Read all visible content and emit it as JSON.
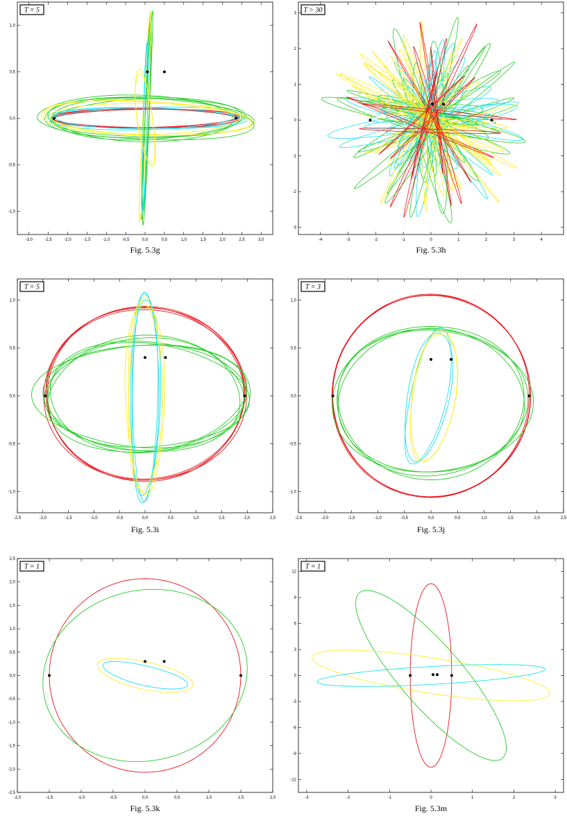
{
  "colors": {
    "red": "#e8141c",
    "green": "#22cc22",
    "cyan": "#18e0f0",
    "yellow": "#ffee22",
    "frame": "#000000"
  },
  "chart_data": [
    {
      "id": "g",
      "type": "line",
      "caption": "Fig. 5.3g",
      "tlabel": "T = 5",
      "xlim": [
        -3.3,
        3.3
      ],
      "ylim": [
        -1.25,
        1.25
      ],
      "xticks": [
        -3.0,
        -2.5,
        -2.0,
        -1.5,
        -1.0,
        -0.5,
        0.0,
        0.5,
        1.0,
        1.5,
        2.0,
        2.5,
        3.0
      ],
      "xtick_labels": [
        "-3,0",
        "-2,5",
        "-2,0",
        "-1,5",
        "-1,0",
        "-0,5",
        "0,0",
        "0,5",
        "1,0",
        "1,5",
        "2,0",
        "2,5",
        "3,0"
      ],
      "yticks": [
        -1.0,
        -0.5,
        0.0,
        0.5,
        1.0
      ],
      "ytick_labels": [
        "-1,0",
        "-0,5",
        "0,0",
        "0,5",
        "1,0"
      ],
      "series": [
        {
          "color": "red",
          "kind": "ellipse",
          "cx": 0,
          "cy": 0,
          "rx": 2.38,
          "ry": 0.1,
          "rot": 0,
          "loops": 4,
          "jitter": 0.03
        },
        {
          "color": "green",
          "kind": "ellipse",
          "cx": 0,
          "cy": 0,
          "rx": 2.55,
          "ry": 0.22,
          "rot": 0,
          "loops": 5,
          "jitter": 0.12
        },
        {
          "color": "cyan",
          "kind": "ellipse",
          "cx": 0,
          "cy": 0,
          "rx": 2.5,
          "ry": 0.12,
          "rot": 0,
          "loops": 3,
          "jitter": 0.05
        },
        {
          "color": "yellow",
          "kind": "ellipse",
          "cx": 0,
          "cy": 0,
          "rx": 2.62,
          "ry": 0.18,
          "rot": 0,
          "loops": 3,
          "jitter": 0.08
        },
        {
          "color": "green",
          "kind": "ellipse",
          "cx": 0.05,
          "cy": 0,
          "rx": 1.07,
          "ry": 0.05,
          "rot": 84,
          "loops": 3,
          "jitter": 0.08
        },
        {
          "color": "yellow",
          "kind": "ellipse",
          "cx": 0,
          "cy": 0,
          "rx": 1.08,
          "ry": 0.06,
          "rot": 83,
          "loops": 2,
          "jitter": 0.06
        },
        {
          "color": "cyan",
          "kind": "ellipse",
          "cx": 0,
          "cy": -0.1,
          "rx": 0.9,
          "ry": 0.05,
          "rot": 86,
          "loops": 2,
          "jitter": 0.05
        },
        {
          "color": "yellow",
          "kind": "ellipse",
          "cx": 0,
          "cy": 0,
          "rx": 0.55,
          "ry": 0.2,
          "rot": -70,
          "loops": 2,
          "jitter": 0.1
        }
      ],
      "markers": [
        [
          -2.35,
          0
        ],
        [
          2.35,
          0
        ],
        [
          0.06,
          0.5
        ],
        [
          0.5,
          0.5
        ]
      ]
    },
    {
      "id": "h",
      "type": "line",
      "caption": "Fig. 5.3h",
      "tlabel": "T > 30",
      "xlim": [
        -4.8,
        4.8
      ],
      "ylim": [
        -3.2,
        3.3
      ],
      "xticks": [
        -4,
        -3,
        -2,
        -1,
        0,
        1,
        2,
        3,
        4
      ],
      "xtick_labels": [
        "-4",
        "-3",
        "-2",
        "-1",
        "0",
        "1",
        "2",
        "3",
        "4"
      ],
      "yticks": [
        -3,
        -2,
        -1,
        0,
        1,
        2,
        3
      ],
      "ytick_labels": [
        "-3",
        "-2",
        "-1",
        "0",
        "1",
        "2",
        "3"
      ],
      "series": [
        {
          "color": "green",
          "kind": "star",
          "count": 22,
          "rmin": 1.6,
          "rmax": 3.9,
          "ry": 0.22,
          "seed": 3
        },
        {
          "color": "cyan",
          "kind": "star",
          "count": 20,
          "rmin": 1.5,
          "rmax": 3.6,
          "ry": 0.25,
          "seed": 7
        },
        {
          "color": "yellow",
          "kind": "star",
          "count": 22,
          "rmin": 1.6,
          "rmax": 3.8,
          "ry": 0.12,
          "seed": 11
        },
        {
          "color": "red",
          "kind": "star",
          "count": 12,
          "rmin": 1.6,
          "rmax": 3.8,
          "ry": 0.06,
          "seed": 19
        }
      ],
      "markers": [
        [
          -2.2,
          0
        ],
        [
          2.2,
          0
        ],
        [
          0.05,
          0.45
        ],
        [
          0.45,
          0.45
        ]
      ]
    },
    {
      "id": "i",
      "type": "line",
      "caption": "Fig. 5.3i",
      "tlabel": "T = 5",
      "xlim": [
        -2.5,
        2.5
      ],
      "ylim": [
        -1.22,
        1.22
      ],
      "xticks": [
        -2.5,
        -2.0,
        -1.5,
        -1.0,
        -0.5,
        0.0,
        0.5,
        1.0,
        1.5,
        2.0,
        2.5
      ],
      "xtick_labels": [
        "-2,5",
        "-2,0",
        "-1,5",
        "-1,0",
        "-0,5",
        "0,0",
        "0,5",
        "1,0",
        "1,5",
        "2,0",
        "2,5"
      ],
      "yticks": [
        -1.0,
        -0.5,
        0.0,
        0.5,
        1.0
      ],
      "ytick_labels": [
        "-1,0",
        "-0,5",
        "0,0",
        "0,5",
        "1,0"
      ],
      "series": [
        {
          "color": "red",
          "kind": "ellipse",
          "cx": 0,
          "cy": 0.02,
          "rx": 1.95,
          "ry": 0.9,
          "rot": 0,
          "loops": 4,
          "jitter": 0.02
        },
        {
          "color": "green",
          "kind": "ellipse",
          "cx": 0,
          "cy": 0,
          "rx": 2.1,
          "ry": 0.58,
          "rot": 0,
          "loops": 6,
          "jitter": 0.1
        },
        {
          "color": "cyan",
          "kind": "ellipse",
          "cx": 0,
          "cy": 0,
          "rx": 0.28,
          "ry": 0.98,
          "rot": 0,
          "loops": 3,
          "jitter": 0.12
        },
        {
          "color": "yellow",
          "kind": "ellipse",
          "cx": 0,
          "cy": 0,
          "rx": 0.35,
          "ry": 1.02,
          "rot": 0,
          "loops": 3,
          "jitter": 0.12
        }
      ],
      "markers": [
        [
          -1.95,
          0
        ],
        [
          1.95,
          0
        ],
        [
          0,
          0.4
        ],
        [
          0.4,
          0.4
        ]
      ]
    },
    {
      "id": "j",
      "type": "line",
      "caption": "Fig. 5.3j",
      "tlabel": "T = 3",
      "xlim": [
        -2.5,
        2.5
      ],
      "ylim": [
        -1.22,
        1.22
      ],
      "xticks": [
        -2.5,
        -2.0,
        -1.5,
        -1.0,
        -0.5,
        0.0,
        0.5,
        1.0,
        1.5,
        2.0,
        2.5
      ],
      "xtick_labels": [
        "-2,5",
        "-2,0",
        "-1,5",
        "-1,0",
        "-0,5",
        "0,0",
        "0,5",
        "1,0",
        "1,5",
        "2,0",
        "2,5"
      ],
      "yticks": [
        -1.0,
        -0.5,
        0.0,
        0.5,
        1.0
      ],
      "ytick_labels": [
        "-1,0",
        "-0,5",
        "0,0",
        "0,5",
        "1,0"
      ],
      "series": [
        {
          "color": "red",
          "kind": "ellipse",
          "cx": 0,
          "cy": 0,
          "rx": 1.86,
          "ry": 1.06,
          "rot": 0,
          "loops": 3,
          "jitter": 0.01
        },
        {
          "color": "green",
          "kind": "ellipse",
          "cx": 0,
          "cy": -0.06,
          "rx": 1.82,
          "ry": 0.77,
          "rot": 0,
          "loops": 4,
          "jitter": 0.05
        },
        {
          "color": "cyan",
          "kind": "ellipse",
          "cx": -0.05,
          "cy": 0,
          "rx": 0.35,
          "ry": 0.72,
          "rot": -25,
          "loops": 2,
          "jitter": 0.08
        },
        {
          "color": "yellow",
          "kind": "ellipse",
          "cx": 0.05,
          "cy": 0,
          "rx": 0.38,
          "ry": 0.74,
          "rot": -20,
          "loops": 2,
          "jitter": 0.08
        }
      ],
      "markers": [
        [
          -1.85,
          0
        ],
        [
          1.85,
          0
        ],
        [
          0,
          0.38
        ],
        [
          0.38,
          0.38
        ]
      ]
    },
    {
      "id": "k",
      "type": "line",
      "caption": "Fig. 5.3k",
      "tlabel": "T = 1",
      "xlim": [
        -2.0,
        2.0
      ],
      "ylim": [
        -2.5,
        2.5
      ],
      "xticks": [
        -2.0,
        -1.5,
        -1.0,
        -0.5,
        0.0,
        0.5,
        1.0,
        1.5,
        2.0
      ],
      "xtick_labels": [
        "-2,0",
        "-1,5",
        "-1,0",
        "-0,5",
        "0,0",
        "0,5",
        "1,0",
        "1,5",
        "2,0"
      ],
      "yticks": [
        -2.5,
        -2.0,
        -1.5,
        -1.0,
        -0.5,
        0.0,
        0.5,
        1.0,
        1.5,
        2.0,
        2.5
      ],
      "ytick_labels": [
        "-2,5",
        "-2,0",
        "-1,5",
        "-1,0",
        "-0,5",
        "0,0",
        "0,5",
        "1,0",
        "1,5",
        "2,0",
        "2,5"
      ],
      "series": [
        {
          "color": "red",
          "kind": "ellipse",
          "cx": 0,
          "cy": 0,
          "rx": 1.5,
          "ry": 2.07,
          "rot": 0,
          "loops": 1,
          "jitter": 0
        },
        {
          "color": "green",
          "kind": "ellipse",
          "cx": 0,
          "cy": 0,
          "rx": 1.58,
          "ry": 1.86,
          "rot": -15,
          "loops": 1,
          "jitter": 0
        },
        {
          "color": "yellow",
          "kind": "ellipse",
          "cx": 0,
          "cy": 0,
          "rx": 0.75,
          "ry": 0.3,
          "rot": -18,
          "loops": 1,
          "jitter": 0.05
        },
        {
          "color": "cyan",
          "kind": "ellipse",
          "cx": 0,
          "cy": 0,
          "rx": 0.68,
          "ry": 0.2,
          "rot": -18,
          "loops": 1,
          "jitter": 0.05
        }
      ],
      "markers": [
        [
          -1.5,
          0
        ],
        [
          1.5,
          0
        ],
        [
          0,
          0.3
        ],
        [
          0.3,
          0.3
        ]
      ]
    },
    {
      "id": "m",
      "type": "line",
      "caption": "Fig. 5.3m",
      "tlabel": "T = 1",
      "xlim": [
        -3.2,
        3.2
      ],
      "ylim": [
        -13.5,
        13.5
      ],
      "xticks": [
        -3,
        -2,
        -1,
        0,
        1,
        2,
        3
      ],
      "xtick_labels": [
        "-3",
        "-2",
        "-1",
        "0",
        "1",
        "2",
        "3"
      ],
      "yticks": [
        -12,
        -9,
        -6,
        -3,
        0,
        3,
        6,
        9,
        12
      ],
      "ytick_labels": [
        "-12",
        "-9",
        "-6",
        "-3",
        "0",
        "3",
        "6",
        "9",
        "12"
      ],
      "series": [
        {
          "color": "red",
          "kind": "ellipse",
          "cx": 0,
          "cy": 0,
          "rx": 0.5,
          "ry": 10.6,
          "rot": 0,
          "loops": 1,
          "jitter": 0
        },
        {
          "color": "green",
          "kind": "line_ellipse",
          "x0": -1.6,
          "y0": 9.8,
          "x1": 1.6,
          "y1": -9.8,
          "w": 0.35
        },
        {
          "color": "yellow",
          "kind": "line_ellipse",
          "x0": -2.85,
          "y0": 2.3,
          "x1": 2.85,
          "y1": -2.3,
          "w": 0.22
        },
        {
          "color": "cyan",
          "kind": "line_ellipse",
          "x0": -2.75,
          "y0": -0.75,
          "x1": 2.75,
          "y1": 0.75,
          "w": 0.1
        }
      ],
      "markers": [
        [
          -0.5,
          0
        ],
        [
          0.5,
          0
        ],
        [
          0.05,
          0.1
        ],
        [
          0.15,
          0.1
        ]
      ]
    }
  ]
}
